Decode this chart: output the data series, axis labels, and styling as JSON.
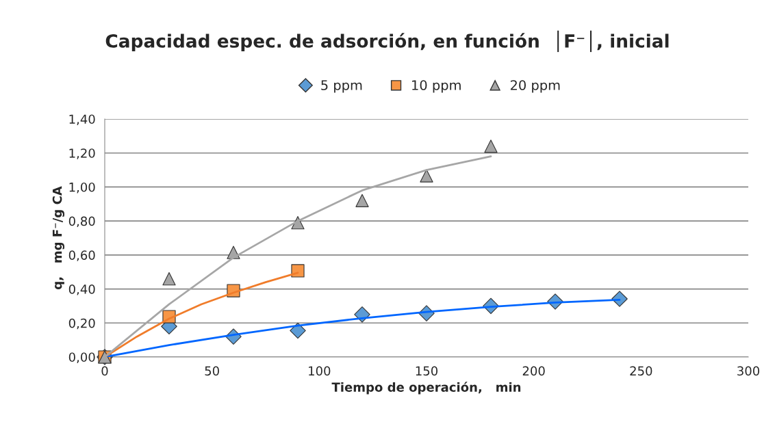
{
  "chart_data": {
    "type": "scatter",
    "title": "Capacidad espec. de adsorción, en función  │F⁻│, inicial",
    "xlabel": "Tiempo de operación,   min",
    "ylabel": "q,   mg F⁻/g CA",
    "series": [
      {
        "name": "5 ppm",
        "marker": "diamond",
        "color": "#5b9bd5",
        "x": [
          0,
          30,
          60,
          90,
          120,
          150,
          180,
          210,
          240
        ],
        "values": [
          0,
          0.18,
          0.12,
          0.155,
          0.25,
          0.257,
          0.3,
          0.326,
          0.342
        ]
      },
      {
        "name": "10 ppm",
        "marker": "square",
        "color": "#f79646",
        "x": [
          0,
          30,
          60,
          90
        ],
        "values": [
          0,
          0.237,
          0.39,
          0.507
        ]
      },
      {
        "name": "20 ppm",
        "marker": "triangle",
        "color": "#a5a5a5",
        "x": [
          0,
          30,
          60,
          90,
          120,
          150,
          180
        ],
        "values": [
          0,
          0.46,
          0.615,
          0.79,
          0.92,
          1.066,
          1.24
        ]
      },
      {
        "type": "line",
        "color": "#0066ff",
        "x": [
          0,
          30,
          60,
          90,
          120,
          150,
          180,
          210,
          240
        ],
        "values": [
          0,
          0.07,
          0.13,
          0.185,
          0.228,
          0.265,
          0.295,
          0.32,
          0.336
        ]
      },
      {
        "type": "line",
        "color": "#f07c2a",
        "x": [
          0,
          15,
          30,
          45,
          60,
          75,
          90
        ],
        "values": [
          0,
          0.12,
          0.225,
          0.31,
          0.378,
          0.44,
          0.495
        ]
      },
      {
        "type": "line",
        "color": "#a6a6a6",
        "x": [
          0,
          30,
          60,
          90,
          120,
          150,
          180
        ],
        "values": [
          0,
          0.31,
          0.585,
          0.8,
          0.98,
          1.1,
          1.18
        ]
      }
    ],
    "xlim": [
      0,
      300
    ],
    "xticks": [
      0,
      50,
      100,
      150,
      200,
      250,
      300
    ],
    "ylim": [
      0,
      1.4
    ],
    "yticks": [
      {
        "value": 0,
        "label": "0,00"
      },
      {
        "value": 0.2,
        "label": "0,20"
      },
      {
        "value": 0.4,
        "label": "0,40"
      },
      {
        "value": 0.6,
        "label": "0,60"
      },
      {
        "value": 0.8,
        "label": "0,80"
      },
      {
        "value": 1.0,
        "label": "1,00"
      },
      {
        "value": 1.2,
        "label": "1,20"
      },
      {
        "value": 1.4,
        "label": "1,40"
      }
    ],
    "grid": "y",
    "legend": "top"
  }
}
